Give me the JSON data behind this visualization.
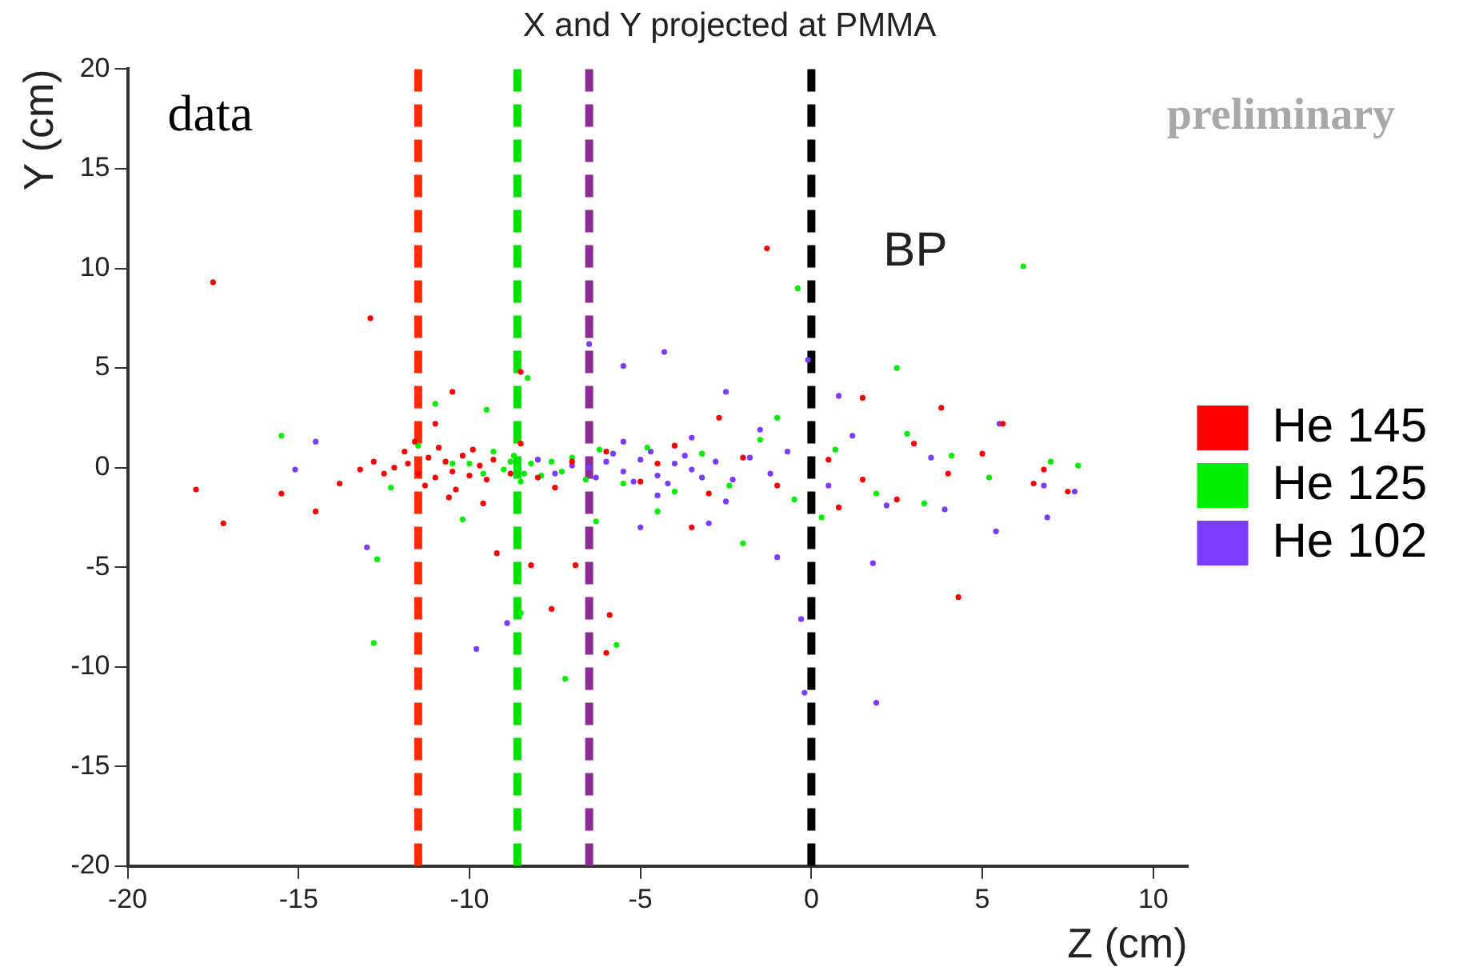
{
  "chart_data": {
    "type": "scatter",
    "title": "X and Y projected at PMMA",
    "xlabel": "Z (cm)",
    "ylabel": "Y (cm)",
    "annotations": [
      "data",
      "preliminary"
    ],
    "xlim": [
      -20,
      11
    ],
    "xticks": [
      -20,
      -15,
      -10,
      -5,
      0,
      5,
      10
    ],
    "ylim": [
      -20,
      20
    ],
    "yticks": [
      -20,
      -15,
      -10,
      -5,
      0,
      5,
      10,
      15,
      20
    ],
    "grid": false,
    "legend": "right",
    "marker": "circle",
    "ref_lines": [
      {
        "axis": "x",
        "value": -11.5,
        "color": "#ff2a00",
        "line_style": "dashed"
      },
      {
        "axis": "x",
        "value": -8.6,
        "color": "#00e000",
        "line_style": "dashed"
      },
      {
        "axis": "x",
        "value": -6.5,
        "color": "#8e2a96",
        "line_style": "dashed"
      },
      {
        "axis": "x",
        "value": 0,
        "label": "BP",
        "color": "#000000",
        "line_style": "dashed"
      }
    ],
    "series": [
      {
        "name": "He 145",
        "color": "#ff0000",
        "x": [
          -11.8,
          -11.5,
          -11.2,
          -11,
          -10.7,
          -10.5,
          -10.2,
          -10,
          -9.7,
          -9.5,
          -12.2,
          -12.5,
          -11.9,
          -11.3,
          -10.9,
          -10.4,
          -9.9,
          -9.3,
          -8.8,
          -12.8,
          -13.2,
          -11.6,
          -10.6,
          -9.6,
          -8.5,
          -7.5,
          -6,
          -5,
          -4,
          -3,
          -2,
          -1,
          0.5,
          1.5,
          3,
          4,
          5,
          6.5,
          7.5,
          -17.5,
          -12.9,
          -1.3,
          -18,
          -17.2,
          -15.5,
          -14.5,
          -13.8,
          -9.2,
          -8.2,
          -6.9,
          -6,
          -5.9,
          -7.6,
          -8.5,
          -10.5,
          -11,
          4.3,
          3.8,
          1.5,
          5.6,
          -3.5,
          -2.7,
          0.8,
          2.5,
          6.8,
          -4.5,
          -7,
          -8
        ],
        "values": [
          0.2,
          -0.3,
          0.5,
          -0.5,
          0.3,
          -0.2,
          0.6,
          -0.4,
          0.1,
          -0.6,
          0,
          -0.3,
          0.8,
          -0.9,
          1,
          -1.1,
          0.9,
          0.4,
          -0.3,
          0.3,
          -0.1,
          1.3,
          -1.5,
          -1.8,
          1.2,
          -1,
          0.8,
          -0.7,
          1.1,
          -1.3,
          0.5,
          -0.9,
          0.4,
          -0.6,
          1.2,
          -0.3,
          0.7,
          -0.8,
          -1.2,
          9.3,
          7.5,
          11,
          -1.1,
          -2.8,
          -1.3,
          -2.2,
          -0.8,
          -4.3,
          -4.9,
          -4.9,
          -9.3,
          -7.4,
          -7.1,
          4.8,
          3.8,
          2.2,
          -6.5,
          3,
          3.5,
          2.2,
          -3,
          2.5,
          -2,
          -1.6,
          -0.1,
          0.2,
          0.3,
          -0.5
        ]
      },
      {
        "name": "He 125",
        "color": "#00ee00",
        "x": [
          -8.6,
          -8.8,
          -8.4,
          -9,
          -8.2,
          -9.3,
          -7.9,
          -8.7,
          -8.5,
          -7.6,
          -9.6,
          -7.3,
          -7,
          -6.6,
          -10,
          -10.5,
          -6.2,
          -5.5,
          -4.8,
          -4,
          -3.2,
          -2.4,
          -1.5,
          -0.5,
          0.7,
          1.9,
          2.8,
          4.1,
          5.2,
          7,
          7.8,
          -11.5,
          -12.3,
          -15.5,
          -12.7,
          -12.8,
          -8.5,
          -7.2,
          -5.7,
          -9.5,
          -8.3,
          -6.3,
          -0.4,
          6.2,
          2.5,
          3.3,
          0.3,
          -2,
          -4.5,
          -1,
          -10.2,
          -11
        ],
        "values": [
          0,
          0.3,
          -0.3,
          -0.1,
          0.2,
          0.8,
          -0.4,
          0.6,
          -0.7,
          0.3,
          -0.3,
          -0.2,
          0.5,
          -0.6,
          0.2,
          0.2,
          0.9,
          -0.8,
          1,
          -1.2,
          0.7,
          -0.9,
          1.4,
          -1.6,
          0.9,
          -1.3,
          1.7,
          0.6,
          -0.5,
          0.3,
          0.1,
          1.1,
          -1,
          1.6,
          -4.6,
          -8.8,
          -7.3,
          -10.6,
          -8.9,
          2.9,
          4.5,
          -2.7,
          9,
          10.1,
          5,
          -1.8,
          -2.5,
          -3.8,
          -2.2,
          2.5,
          -2.6,
          3.2
        ]
      },
      {
        "name": "He 102",
        "color": "#7a3cff",
        "x": [
          -6.5,
          -6,
          -5.5,
          -5,
          -4.5,
          -4,
          -3.5,
          -6.3,
          -5.8,
          -5.2,
          -4.7,
          -4.2,
          -3.7,
          -3.2,
          -2.8,
          -2.3,
          -1.8,
          -1.2,
          -0.7,
          -7,
          -7.5,
          -8,
          -5.5,
          -4.5,
          -3.5,
          -2.5,
          -1.5,
          0.5,
          1.2,
          2.2,
          3.5,
          5.5,
          6.8,
          7.7,
          -6.5,
          -4.3,
          -5.5,
          -2.5,
          0.8,
          -14.5,
          -15.1,
          -13,
          -9.8,
          -8.9,
          -0.2,
          1.9,
          -1,
          1.8,
          3.9,
          5.4,
          6.9,
          -0.3,
          -3,
          -0.1,
          -5
        ],
        "values": [
          0,
          0.3,
          -0.2,
          0.4,
          -0.4,
          0.2,
          -0.1,
          -0.5,
          0.7,
          -0.7,
          0.8,
          -0.8,
          0.6,
          -0.5,
          0.3,
          -0.6,
          0.5,
          -0.3,
          0.8,
          0.1,
          -0.3,
          0.4,
          1.3,
          -1.4,
          1.5,
          -1.7,
          1.9,
          -0.9,
          1.6,
          -1.9,
          0.5,
          2.2,
          -0.9,
          -1.2,
          6.2,
          5.8,
          5.1,
          3.8,
          3.6,
          1.3,
          -0.1,
          -4,
          -9.1,
          -7.8,
          -11.3,
          -11.8,
          -4.5,
          -4.8,
          -2.1,
          -3.2,
          -2.5,
          -7.6,
          -2.8,
          5.4,
          -3
        ]
      }
    ]
  }
}
